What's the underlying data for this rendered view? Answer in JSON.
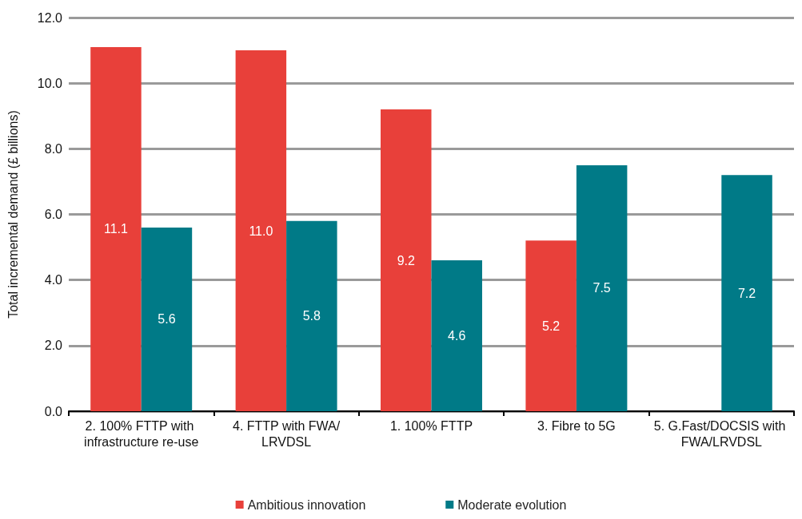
{
  "chart_data": {
    "type": "bar",
    "ylabel": "Total incremental demand (£ billions)",
    "categories": [
      "2. 100% FTTP with infrastructure re-use",
      "4. FTTP with FWA/LRVDSL",
      "1. 100% FTTP",
      "3. Fibre to 5G",
      "5. G.Fast/DOCSIS with FWA/LRVDSL"
    ],
    "series": [
      {
        "name": "Ambitious innovation",
        "color": "#e8403a",
        "values": [
          11.1,
          11.0,
          9.2,
          5.2,
          null
        ],
        "value_labels": [
          "11.1",
          "11.0",
          "9.2",
          "5.2",
          null
        ]
      },
      {
        "name": "Moderate evolution",
        "color": "#007a87",
        "values": [
          5.6,
          5.8,
          4.6,
          7.5,
          7.2
        ],
        "value_labels": [
          "5.6",
          "5.8",
          "4.6",
          "7.5",
          "7.2"
        ]
      }
    ],
    "ylim": [
      0,
      12
    ],
    "yticks": [
      {
        "value": 0,
        "label": "0.0"
      },
      {
        "value": 2,
        "label": "2.0"
      },
      {
        "value": 4,
        "label": "4.0"
      },
      {
        "value": 6,
        "label": "6.0"
      },
      {
        "value": 8,
        "label": "8.0"
      },
      {
        "value": 10,
        "label": "10.0"
      },
      {
        "value": 12,
        "label": "12.0"
      }
    ],
    "grid": "y",
    "legend": "bottom"
  }
}
